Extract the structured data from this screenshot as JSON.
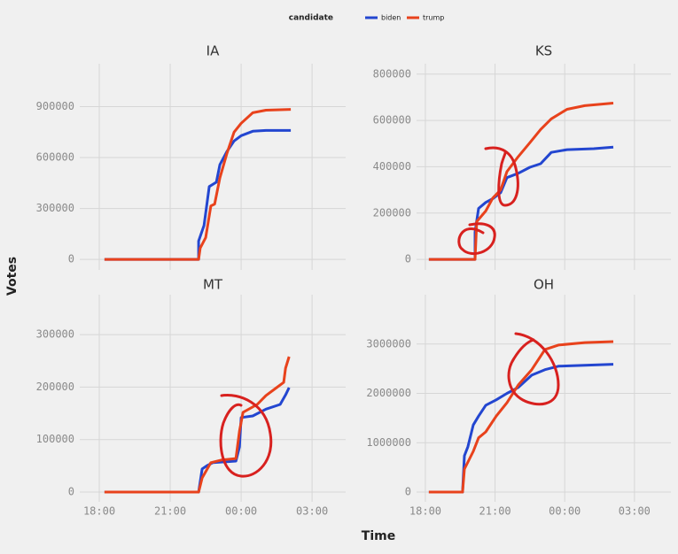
{
  "legend_title": "candidate",
  "xlabel": "Time",
  "ylabel": "Votes",
  "chart_data": [
    {
      "type": "line",
      "title": "IA",
      "xlim": [
        17.175,
        28.42
      ],
      "xticks": [
        18,
        21,
        24,
        27
      ],
      "ylim": [
        -62000,
        1153000
      ],
      "yticks": [
        0,
        300000,
        600000,
        900000
      ],
      "grid": true,
      "series": [
        {
          "name": "biden",
          "color": "#2346d0",
          "x": [
            18.22,
            22.2,
            22.2,
            22.43,
            22.65,
            22.95,
            23.1,
            23.4,
            23.7,
            24.0,
            24.49,
            25.05,
            26.1
          ],
          "values": [
            0,
            0,
            108000,
            200000,
            429000,
            455000,
            558000,
            636000,
            698000,
            729000,
            755000,
            760000,
            760000
          ]
        },
        {
          "name": "trump",
          "color": "#e8421c",
          "x": [
            18.22,
            22.2,
            22.27,
            22.5,
            22.72,
            22.88,
            23.1,
            23.4,
            23.7,
            24.0,
            24.49,
            25.05,
            26.1
          ],
          "values": [
            0,
            0,
            67000,
            129000,
            315000,
            326000,
            481000,
            626000,
            750000,
            802000,
            864000,
            879000,
            884000
          ]
        }
      ]
    },
    {
      "type": "line",
      "title": "KS",
      "xlim": [
        17.62,
        28.57
      ],
      "xticks": [
        18,
        21,
        24,
        27
      ],
      "ylim": [
        -45500,
        845000
      ],
      "yticks": [
        0,
        200000,
        400000,
        600000,
        800000
      ],
      "grid": true,
      "series": [
        {
          "name": "biden",
          "color": "#2346d0",
          "x": [
            18.15,
            20.14,
            20.14,
            20.29,
            20.6,
            20.9,
            21.24,
            21.51,
            22.0,
            22.5,
            22.96,
            23.42,
            24.1,
            25.25,
            26.09
          ],
          "values": [
            0,
            0,
            118000,
            220000,
            246000,
            262000,
            288000,
            353000,
            372000,
            398000,
            413000,
            462000,
            474000,
            478000,
            485000
          ]
        },
        {
          "name": "trump",
          "color": "#e8421c",
          "x": [
            18.15,
            20.14,
            20.21,
            20.6,
            20.9,
            21.24,
            21.51,
            22.0,
            22.5,
            22.96,
            23.42,
            24.1,
            24.86,
            26.09
          ],
          "values": [
            0,
            0,
            163000,
            209000,
            265000,
            300000,
            379000,
            444000,
            504000,
            561000,
            607000,
            648000,
            664000,
            675000
          ]
        }
      ]
    },
    {
      "type": "line",
      "title": "MT",
      "xlim": [
        17.175,
        28.42
      ],
      "xticks": [
        {
          "value": 18,
          "label": "18:00"
        },
        {
          "value": 21,
          "label": "21:00"
        },
        {
          "value": 24,
          "label": "00:00"
        },
        {
          "value": 27,
          "label": "03:00"
        }
      ],
      "ylim": [
        -18500,
        376000
      ],
      "yticks": [
        0,
        100000,
        200000,
        300000
      ],
      "grid": true,
      "series": [
        {
          "name": "biden",
          "color": "#2346d0",
          "x": [
            18.22,
            22.2,
            22.35,
            22.58,
            22.8,
            23.78,
            23.93,
            24.0,
            24.49,
            25.05,
            25.65,
            25.88,
            26.03
          ],
          "values": [
            0,
            0,
            44000,
            51000,
            56000,
            59000,
            86000,
            142000,
            145000,
            158000,
            167000,
            185000,
            199000
          ]
        },
        {
          "name": "trump",
          "color": "#e8421c",
          "x": [
            18.22,
            22.2,
            22.35,
            22.72,
            23.17,
            23.78,
            23.93,
            24.08,
            24.68,
            25.05,
            25.5,
            25.8,
            25.88,
            26.03
          ],
          "values": [
            0,
            0,
            27000,
            56000,
            61000,
            64000,
            116000,
            152000,
            167000,
            184000,
            199000,
            209000,
            236000,
            258000
          ]
        }
      ]
    },
    {
      "type": "line",
      "title": "OH",
      "xlim": [
        17.62,
        28.57
      ],
      "xticks": [
        {
          "value": 18,
          "label": "18:00"
        },
        {
          "value": 21,
          "label": "21:00"
        },
        {
          "value": 24,
          "label": "00:00"
        },
        {
          "value": 27,
          "label": "03:00"
        }
      ],
      "ylim": [
        -197000,
        4000000
      ],
      "yticks": [
        0,
        1000000,
        2000000,
        3000000
      ],
      "grid": true,
      "series": [
        {
          "name": "biden",
          "color": "#2346d0",
          "x": [
            18.15,
            19.6,
            19.68,
            19.83,
            20.06,
            20.29,
            20.6,
            21.05,
            21.51,
            22.0,
            22.58,
            23.15,
            23.73,
            24.87,
            26.09
          ],
          "values": [
            0,
            0,
            736000,
            916000,
            1360000,
            1540000,
            1760000,
            1870000,
            2000000,
            2120000,
            2370000,
            2480000,
            2550000,
            2570000,
            2590000
          ]
        },
        {
          "name": "trump",
          "color": "#e8421c",
          "x": [
            18.15,
            19.6,
            19.68,
            20.06,
            20.29,
            20.6,
            21.05,
            21.51,
            22.0,
            22.58,
            23.15,
            23.73,
            24.87,
            26.09
          ],
          "values": [
            0,
            0,
            467000,
            826000,
            1100000,
            1220000,
            1540000,
            1810000,
            2170000,
            2480000,
            2890000,
            2980000,
            3030000,
            3050000
          ]
        }
      ]
    }
  ]
}
